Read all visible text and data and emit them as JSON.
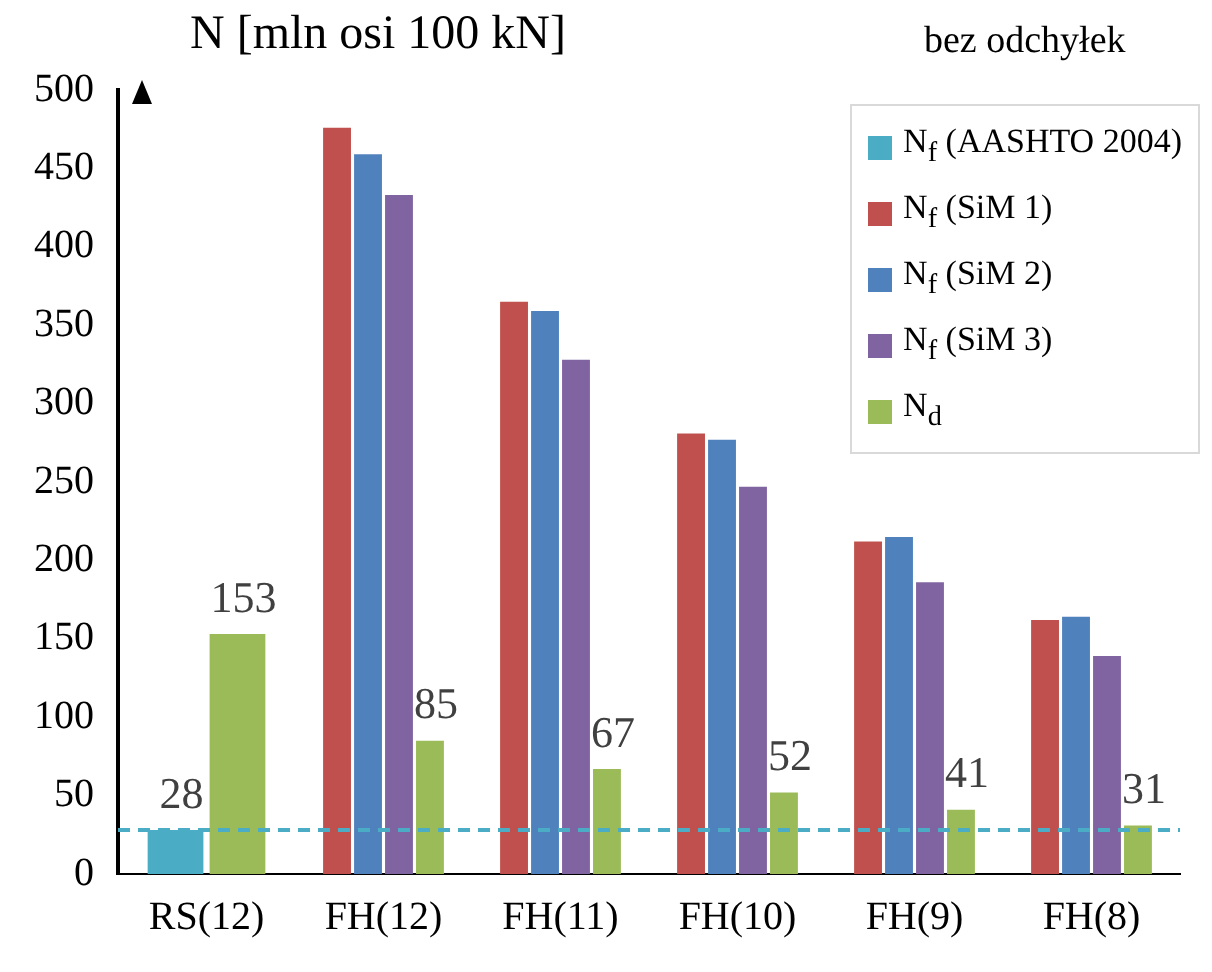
{
  "chart_data": {
    "type": "bar",
    "title": "N [mln osi 100 kN]",
    "annotations": [
      "bez odchyłek"
    ],
    "categories": [
      "RS(12)",
      "FH(12)",
      "FH(11)",
      "FH(10)",
      "FH(9)",
      "FH(8)"
    ],
    "series": [
      {
        "name": "N$_{f}$ (AASHTO 2004)",
        "color": "#4bacc6",
        "values": [
          28,
          null,
          null,
          null,
          null,
          null
        ],
        "value_labels": [
          "28",
          null,
          null,
          null,
          null,
          null
        ]
      },
      {
        "name": "N$_{f}$ (SiM 1)",
        "color": "#c0504d",
        "values": [
          null,
          476,
          365,
          281,
          212,
          162
        ]
      },
      {
        "name": "N$_{f}$ (SiM 2)",
        "color": "#4f81bd",
        "values": [
          null,
          459,
          359,
          277,
          215,
          164
        ]
      },
      {
        "name": "N$_{f}$ (SiM 3)",
        "color": "#8064a2",
        "values": [
          null,
          433,
          328,
          247,
          186,
          139
        ]
      },
      {
        "name": "N$_{d}$",
        "color": "#9bbb59",
        "values": [
          153,
          85,
          67,
          52,
          41,
          31
        ],
        "value_labels": [
          "153",
          "85",
          "67",
          "52",
          "41",
          "31"
        ]
      }
    ],
    "ref_lines": [
      {
        "axis": "y",
        "value": 28,
        "color": "#4bacc6",
        "line_style": "dashed"
      }
    ],
    "ylim": [
      0,
      500
    ],
    "yticks": [
      0,
      50,
      100,
      150,
      200,
      250,
      300,
      350,
      400,
      450,
      500
    ],
    "grid": false,
    "legend": "top right"
  }
}
